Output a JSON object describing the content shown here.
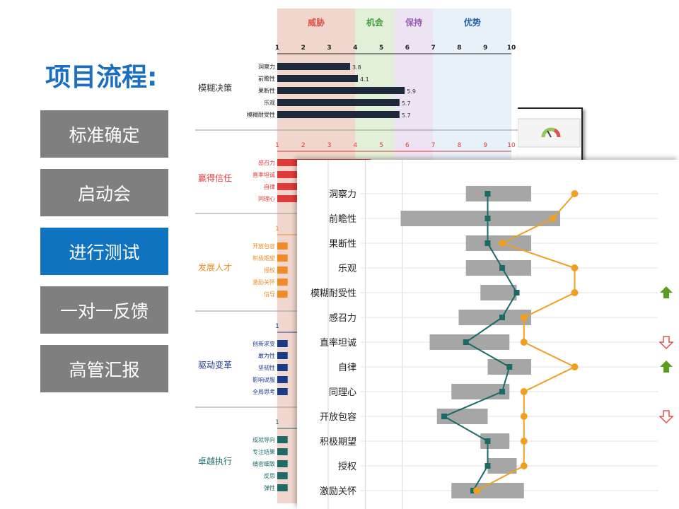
{
  "title": "项目流程:",
  "steps": [
    {
      "label": "标准确定",
      "active": false
    },
    {
      "label": "启动会",
      "active": false
    },
    {
      "label": "进行测试",
      "active": true
    },
    {
      "label": "一对一反馈",
      "active": false
    },
    {
      "label": "高管汇报",
      "active": false
    }
  ],
  "report": {
    "bands": [
      {
        "label": "威胁",
        "color": "#f0d6cc",
        "text_color": "#d9534f",
        "from": 1,
        "to": 4
      },
      {
        "label": "机会",
        "color": "#e3f0d9",
        "text_color": "#3c9a3c",
        "from": 4,
        "to": 5.5
      },
      {
        "label": "保持",
        "color": "#ece4f2",
        "text_color": "#9b59b6",
        "from": 5.5,
        "to": 7
      },
      {
        "label": "优势",
        "color": "#e8f1f8",
        "text_color": "#1f5fa8",
        "from": 7,
        "to": 10
      }
    ],
    "scale_ticks": [
      1,
      2,
      3,
      4,
      5,
      6,
      7,
      8,
      9,
      10
    ],
    "sections": [
      {
        "name": "模糊决策",
        "color": "#1e2a3c",
        "show_scale": false,
        "items": [
          {
            "label": "洞察力",
            "value": 3.8
          },
          {
            "label": "前瞻性",
            "value": 4.1
          },
          {
            "label": "果断性",
            "value": 5.9
          },
          {
            "label": "乐观",
            "value": 5.7
          },
          {
            "label": "模糊耐受性",
            "value": 5.7
          }
        ]
      },
      {
        "name": "赢得信任",
        "color": "#e03a3a",
        "show_scale": true,
        "items": [
          {
            "label": "感召力",
            "value": 4.6
          },
          {
            "label": "直率坦诚",
            "value": 4.0
          },
          {
            "label": "自律",
            "value": 4.0
          },
          {
            "label": "同理心",
            "value": 4.0
          }
        ]
      },
      {
        "name": "发展人才",
        "color": "#f08c28",
        "show_scale": true,
        "items": [
          {
            "label": "开放包容",
            "value": 1.4
          },
          {
            "label": "积极期望",
            "value": 1.4
          },
          {
            "label": "授权",
            "value": 1.4
          },
          {
            "label": "激励关怀",
            "value": 1.4
          },
          {
            "label": "信导",
            "value": 1.4
          }
        ]
      },
      {
        "name": "驱动变革",
        "color": "#1a3a8a",
        "show_scale": true,
        "items": [
          {
            "label": "创新求变",
            "value": 1.4
          },
          {
            "label": "敢为性",
            "value": 1.4
          },
          {
            "label": "坚韧性",
            "value": 1.4
          },
          {
            "label": "影响说服",
            "value": 1.4
          },
          {
            "label": "全局思考",
            "value": 1.4
          }
        ]
      },
      {
        "name": "卓越执行",
        "color": "#1d6a68",
        "show_scale": true,
        "items": [
          {
            "label": "成就导向",
            "value": 1.4
          },
          {
            "label": "专注结果",
            "value": 1.4
          },
          {
            "label": "缜密细致",
            "value": 1.4
          },
          {
            "label": "反思",
            "value": 1.4
          },
          {
            "label": "弹性",
            "value": 1.4
          }
        ]
      }
    ]
  },
  "chart_data": {
    "type": "line",
    "categories": [
      "洞察力",
      "前瞻性",
      "果断性",
      "乐观",
      "模糊耐受性",
      "感召力",
      "直率坦诚",
      "自律",
      "同理心",
      "开放包容",
      "积极期望",
      "授权",
      "激励关怀"
    ],
    "xlim": [
      0,
      10
    ],
    "grid": true,
    "ranges": [
      [
        5.5,
        6.4
      ],
      [
        4.6,
        6.8
      ],
      [
        5.5,
        6.4
      ],
      [
        5.5,
        6.4
      ],
      [
        5.7,
        6.2
      ],
      [
        5.4,
        6.4
      ],
      [
        5.0,
        6.1
      ],
      [
        5.8,
        6.4
      ],
      [
        5.3,
        6.1
      ],
      [
        5.1,
        5.8
      ],
      [
        5.7,
        6.1
      ],
      [
        5.8,
        6.2
      ],
      [
        5.3,
        6.3
      ]
    ],
    "series": [
      {
        "values": [
          5.8,
          5.8,
          5.8,
          6.0,
          6.2,
          6.0,
          5.5,
          6.1,
          6.0,
          5.2,
          5.8,
          5.8,
          5.6
        ],
        "color": "#1a6b66"
      },
      {
        "values": [
          7.0,
          6.7,
          6.0,
          7.0,
          7.0,
          6.3,
          6.3,
          7.0,
          6.3,
          6.3,
          6.3,
          6.3,
          5.65
        ],
        "color": "#f0a020"
      }
    ],
    "markers": [
      {
        "category": "模糊耐受性",
        "icon": "up-arrow-filled-icon",
        "color": "#5a9e1e"
      },
      {
        "category": "直率坦诚",
        "icon": "down-arrow-outline-icon",
        "color": "#e05050"
      },
      {
        "category": "自律",
        "icon": "up-arrow-filled-icon",
        "color": "#5a9e1e"
      },
      {
        "category": "开放包容",
        "icon": "down-arrow-outline-icon",
        "color": "#e05050"
      }
    ]
  }
}
